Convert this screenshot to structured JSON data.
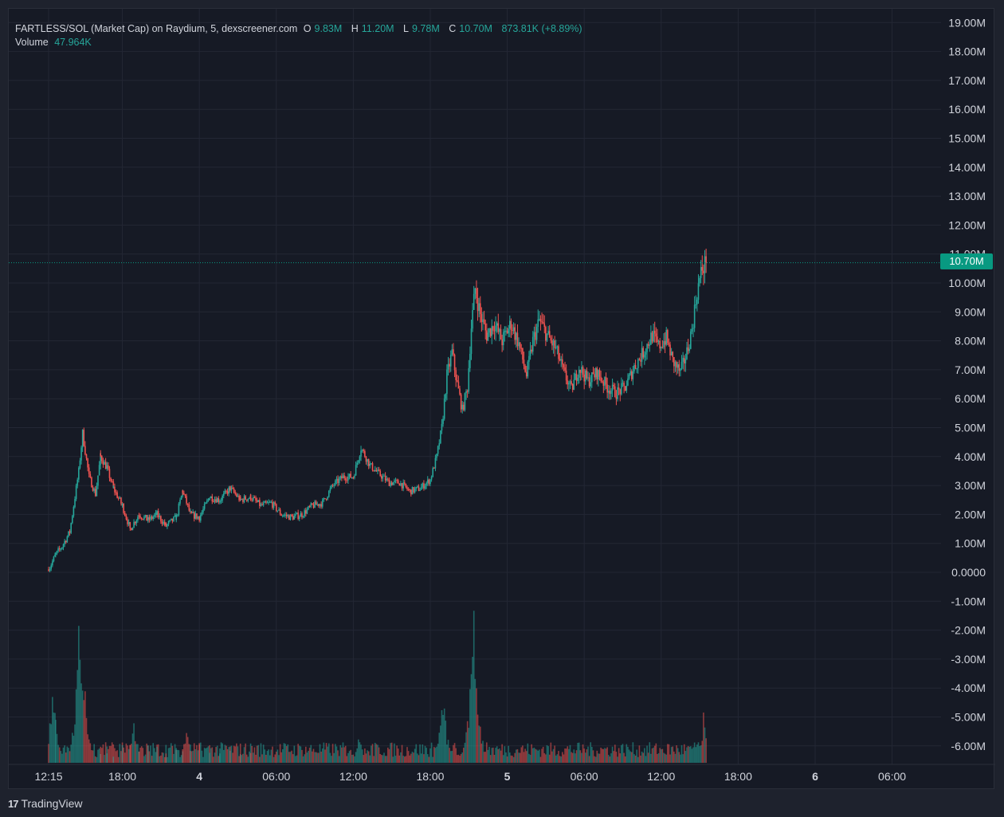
{
  "legend": {
    "pair_label": "FARTLESS/SOL (Market Cap) on Raydium, 5, dexscreener.com",
    "o_label": "O",
    "o_value": "9.83M",
    "h_label": "H",
    "h_value": "11.20M",
    "l_label": "L",
    "l_value": "9.78M",
    "c_label": "C",
    "c_value": "10.70M",
    "change": "873.81K (+8.89%)",
    "volume_label": "Volume",
    "volume_value": "47.964K"
  },
  "last_price_tag": "10.70M",
  "footer": {
    "brand": "TradingView",
    "logo_glyph": "17"
  },
  "colors": {
    "up": "#26a69a",
    "down": "#ef5350",
    "background": "#161a25",
    "grid": "#232734",
    "tag": "#089981"
  },
  "chart_data": {
    "type": "candlestick",
    "title": "FARTLESS/SOL (Market Cap) on Raydium, 5, dexscreener.com",
    "y_axis": {
      "ticks": [
        "19.00M",
        "18.00M",
        "17.00M",
        "16.00M",
        "15.00M",
        "14.00M",
        "13.00M",
        "12.00M",
        "11.00M",
        "10.00M",
        "9.00M",
        "8.00M",
        "7.00M",
        "6.00M",
        "5.00M",
        "4.00M",
        "3.00M",
        "2.00M",
        "1.00M",
        "0.0000",
        "-1.00M",
        "-2.00M",
        "-3.00M",
        "-4.00M",
        "-5.00M",
        "-6.00M"
      ],
      "min_m": -6.6,
      "max_m": 19.3,
      "unit": "M"
    },
    "x_axis": {
      "ticks": [
        {
          "label": "12:15",
          "hour": 0.25,
          "bold": false
        },
        {
          "label": "18:00",
          "hour": 6,
          "bold": false
        },
        {
          "label": "4",
          "hour": 12,
          "bold": true
        },
        {
          "label": "06:00",
          "hour": 18,
          "bold": false
        },
        {
          "label": "12:00",
          "hour": 24,
          "bold": false
        },
        {
          "label": "18:00",
          "hour": 30,
          "bold": false
        },
        {
          "label": "5",
          "hour": 36,
          "bold": true
        },
        {
          "label": "06:00",
          "hour": 42,
          "bold": false
        },
        {
          "label": "12:00",
          "hour": 48,
          "bold": false
        },
        {
          "label": "18:00",
          "hour": 54,
          "bold": false
        },
        {
          "label": "6",
          "hour": 60,
          "bold": true
        },
        {
          "label": "06:00",
          "hour": 66,
          "bold": false
        }
      ],
      "range_hours": [
        -3.0,
        72.0
      ],
      "note": "hours elapsed from 00:00 of day 3"
    },
    "grid": true,
    "series_close_path": [
      {
        "t": 0.25,
        "close": 0.1
      },
      {
        "t": 0.8,
        "close": 0.6
      },
      {
        "t": 1.3,
        "close": 0.9
      },
      {
        "t": 1.9,
        "close": 1.4
      },
      {
        "t": 2.3,
        "close": 2.6
      },
      {
        "t": 2.6,
        "close": 3.5
      },
      {
        "t": 2.9,
        "close": 4.8
      },
      {
        "t": 3.4,
        "close": 3.3
      },
      {
        "t": 3.9,
        "close": 2.7
      },
      {
        "t": 4.3,
        "close": 4.0
      },
      {
        "t": 4.8,
        "close": 3.6
      },
      {
        "t": 5.3,
        "close": 2.9
      },
      {
        "t": 6.0,
        "close": 2.3
      },
      {
        "t": 6.6,
        "close": 1.5
      },
      {
        "t": 7.3,
        "close": 2.0
      },
      {
        "t": 8.0,
        "close": 1.8
      },
      {
        "t": 8.7,
        "close": 2.0
      },
      {
        "t": 9.4,
        "close": 1.6
      },
      {
        "t": 10.2,
        "close": 1.9
      },
      {
        "t": 10.7,
        "close": 2.8
      },
      {
        "t": 11.3,
        "close": 2.0
      },
      {
        "t": 12.0,
        "close": 1.9
      },
      {
        "t": 12.8,
        "close": 2.6
      },
      {
        "t": 13.6,
        "close": 2.5
      },
      {
        "t": 14.4,
        "close": 2.9
      },
      {
        "t": 15.2,
        "close": 2.5
      },
      {
        "t": 16.0,
        "close": 2.6
      },
      {
        "t": 16.8,
        "close": 2.3
      },
      {
        "t": 17.6,
        "close": 2.4
      },
      {
        "t": 18.4,
        "close": 2.0
      },
      {
        "t": 19.2,
        "close": 1.9
      },
      {
        "t": 20.0,
        "close": 2.0
      },
      {
        "t": 20.8,
        "close": 2.3
      },
      {
        "t": 21.6,
        "close": 2.4
      },
      {
        "t": 22.4,
        "close": 3.0
      },
      {
        "t": 23.2,
        "close": 3.3
      },
      {
        "t": 24.0,
        "close": 3.3
      },
      {
        "t": 24.6,
        "close": 4.3
      },
      {
        "t": 25.3,
        "close": 3.7
      },
      {
        "t": 26.0,
        "close": 3.4
      },
      {
        "t": 26.8,
        "close": 3.1
      },
      {
        "t": 27.6,
        "close": 3.1
      },
      {
        "t": 28.4,
        "close": 2.8
      },
      {
        "t": 29.2,
        "close": 2.9
      },
      {
        "t": 30.0,
        "close": 3.2
      },
      {
        "t": 30.5,
        "close": 4.0
      },
      {
        "t": 30.9,
        "close": 5.0
      },
      {
        "t": 31.3,
        "close": 6.8
      },
      {
        "t": 31.7,
        "close": 7.6
      },
      {
        "t": 32.1,
        "close": 6.5
      },
      {
        "t": 32.5,
        "close": 5.6
      },
      {
        "t": 32.9,
        "close": 6.4
      },
      {
        "t": 33.2,
        "close": 8.5
      },
      {
        "t": 33.5,
        "close": 9.8
      },
      {
        "t": 33.9,
        "close": 8.9
      },
      {
        "t": 34.4,
        "close": 8.2
      },
      {
        "t": 35.0,
        "close": 8.6
      },
      {
        "t": 35.6,
        "close": 8.0
      },
      {
        "t": 36.3,
        "close": 8.6
      },
      {
        "t": 36.9,
        "close": 7.9
      },
      {
        "t": 37.5,
        "close": 6.8
      },
      {
        "t": 38.0,
        "close": 8.0
      },
      {
        "t": 38.5,
        "close": 8.7
      },
      {
        "t": 39.1,
        "close": 8.2
      },
      {
        "t": 39.8,
        "close": 7.7
      },
      {
        "t": 40.4,
        "close": 6.9
      },
      {
        "t": 41.0,
        "close": 6.3
      },
      {
        "t": 41.6,
        "close": 7.1
      },
      {
        "t": 42.3,
        "close": 6.6
      },
      {
        "t": 43.0,
        "close": 6.9
      },
      {
        "t": 43.8,
        "close": 6.4
      },
      {
        "t": 44.5,
        "close": 6.2
      },
      {
        "t": 45.2,
        "close": 6.4
      },
      {
        "t": 45.9,
        "close": 7.1
      },
      {
        "t": 46.6,
        "close": 7.6
      },
      {
        "t": 47.3,
        "close": 8.2
      },
      {
        "t": 47.8,
        "close": 7.8
      },
      {
        "t": 48.4,
        "close": 8.1
      },
      {
        "t": 48.9,
        "close": 7.3
      },
      {
        "t": 49.5,
        "close": 6.9
      },
      {
        "t": 50.0,
        "close": 7.6
      },
      {
        "t": 50.4,
        "close": 8.4
      },
      {
        "t": 50.8,
        "close": 9.7
      },
      {
        "t": 51.2,
        "close": 10.5
      },
      {
        "t": 51.5,
        "close": 10.7
      }
    ],
    "volume_peaks": [
      {
        "t": 0.6,
        "relative": 0.45
      },
      {
        "t": 2.6,
        "relative": 0.78
      },
      {
        "t": 3.0,
        "relative": 0.55
      },
      {
        "t": 6.9,
        "relative": 0.25
      },
      {
        "t": 11.0,
        "relative": 0.2
      },
      {
        "t": 24.5,
        "relative": 0.17
      },
      {
        "t": 31.0,
        "relative": 0.42
      },
      {
        "t": 33.4,
        "relative": 1.0
      },
      {
        "t": 51.3,
        "relative": 0.28
      }
    ],
    "last_close": 10.7
  }
}
